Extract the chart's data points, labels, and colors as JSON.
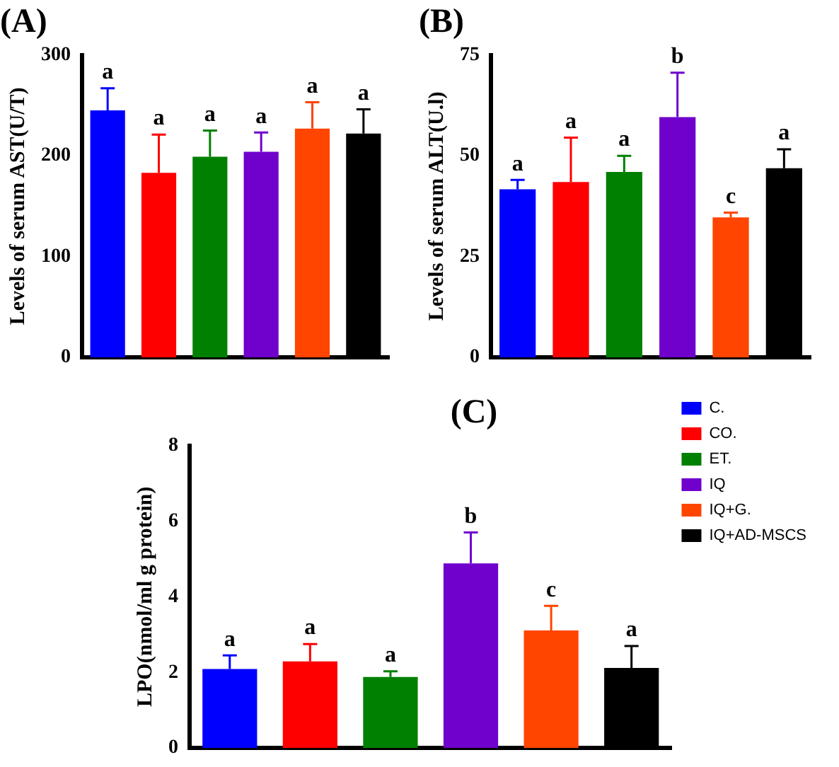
{
  "chart_data": [
    {
      "type": "bar",
      "title": "(A)",
      "ylabel": "Levels of serum AST(U/T)",
      "categories": [
        null,
        null,
        null,
        null,
        null,
        null
      ],
      "ylim": [
        0,
        300
      ],
      "yticks": [
        0,
        100,
        200,
        300
      ],
      "grid": false,
      "tick_labels": "y",
      "legend": false,
      "series": [
        {
          "color": "#0000ff",
          "values": [
            245,
            null,
            null,
            null,
            null,
            null
          ],
          "errors": [
            22,
            null,
            null,
            null,
            null,
            null
          ],
          "value_labels": [
            "a",
            null,
            null,
            null,
            null,
            null
          ]
        },
        {
          "color": "#ff0000",
          "values": [
            null,
            183,
            null,
            null,
            null,
            null
          ],
          "errors": [
            null,
            38,
            null,
            null,
            null,
            null
          ],
          "value_labels": [
            null,
            "a",
            null,
            null,
            null,
            null
          ]
        },
        {
          "color": "#008000",
          "values": [
            null,
            null,
            199,
            null,
            null,
            null
          ],
          "errors": [
            null,
            null,
            26,
            null,
            null,
            null
          ],
          "value_labels": [
            null,
            null,
            "a",
            null,
            null,
            null
          ]
        },
        {
          "color": "#7000cc",
          "values": [
            null,
            null,
            null,
            204,
            null,
            null
          ],
          "errors": [
            null,
            null,
            null,
            19,
            null,
            null
          ],
          "value_labels": [
            null,
            null,
            null,
            "a",
            null,
            null
          ]
        },
        {
          "color": "#ff4500",
          "values": [
            null,
            null,
            null,
            null,
            227,
            null
          ],
          "errors": [
            null,
            null,
            null,
            null,
            26,
            null
          ],
          "value_labels": [
            null,
            null,
            null,
            null,
            "a",
            null
          ]
        },
        {
          "color": "#000000",
          "values": [
            null,
            null,
            null,
            null,
            null,
            222
          ],
          "errors": [
            null,
            null,
            null,
            null,
            null,
            24
          ],
          "value_labels": [
            null,
            null,
            null,
            null,
            null,
            "a"
          ]
        }
      ]
    },
    {
      "type": "bar",
      "title": "(B)",
      "ylabel": "Levels of serum ALT(U.l)",
      "categories": [
        null,
        null,
        null,
        null,
        null,
        null
      ],
      "ylim": [
        0,
        75
      ],
      "yticks": [
        0,
        25,
        50,
        75
      ],
      "grid": false,
      "tick_labels": "y",
      "legend": false,
      "series": [
        {
          "color": "#0000ff",
          "values": [
            41.7,
            null,
            null,
            null,
            null,
            null
          ],
          "errors": [
            2.3,
            null,
            null,
            null,
            null,
            null
          ],
          "value_labels": [
            "a",
            null,
            null,
            null,
            null,
            null
          ]
        },
        {
          "color": "#ff0000",
          "values": [
            null,
            43.5,
            null,
            null,
            null,
            null
          ],
          "errors": [
            null,
            11,
            null,
            null,
            null,
            null
          ],
          "value_labels": [
            null,
            "a",
            null,
            null,
            null,
            null
          ]
        },
        {
          "color": "#008000",
          "values": [
            null,
            null,
            46,
            null,
            null,
            null
          ],
          "errors": [
            null,
            null,
            4,
            null,
            null,
            null
          ],
          "value_labels": [
            null,
            null,
            "a",
            null,
            null,
            null
          ]
        },
        {
          "color": "#7000cc",
          "values": [
            null,
            null,
            null,
            59.6,
            null,
            null
          ],
          "errors": [
            null,
            null,
            null,
            11,
            null,
            null
          ],
          "value_labels": [
            null,
            null,
            null,
            "b",
            null,
            null
          ]
        },
        {
          "color": "#ff4500",
          "values": [
            null,
            null,
            null,
            null,
            34.7,
            null
          ],
          "errors": [
            null,
            null,
            null,
            null,
            1.2,
            null
          ],
          "value_labels": [
            null,
            null,
            null,
            null,
            "c",
            null
          ]
        },
        {
          "color": "#000000",
          "values": [
            null,
            null,
            null,
            null,
            null,
            46.9
          ],
          "errors": [
            null,
            null,
            null,
            null,
            null,
            4.7
          ],
          "value_labels": [
            null,
            null,
            null,
            null,
            null,
            "a"
          ]
        }
      ]
    },
    {
      "type": "bar",
      "title": "(C)",
      "ylabel": "LPO(nmol/ml g protein)",
      "categories": [
        null,
        null,
        null,
        null,
        null,
        null
      ],
      "ylim": [
        0,
        8
      ],
      "yticks": [
        0,
        2,
        4,
        6,
        8
      ],
      "grid": false,
      "tick_labels": "y",
      "legend": "right",
      "series": [
        {
          "name": "C.",
          "color": "#0000ff",
          "values": [
            2.09,
            null,
            null,
            null,
            null,
            null
          ],
          "errors": [
            0.36,
            null,
            null,
            null,
            null,
            null
          ],
          "value_labels": [
            "a",
            null,
            null,
            null,
            null,
            null
          ]
        },
        {
          "name": "CO.",
          "color": "#ff0000",
          "values": [
            null,
            2.29,
            null,
            null,
            null,
            null
          ],
          "errors": [
            null,
            0.46,
            null,
            null,
            null,
            null
          ],
          "value_labels": [
            null,
            "a",
            null,
            null,
            null,
            null
          ]
        },
        {
          "name": "ET.",
          "color": "#008000",
          "values": [
            null,
            null,
            1.88,
            null,
            null,
            null
          ],
          "errors": [
            null,
            null,
            0.15,
            null,
            null,
            null
          ],
          "value_labels": [
            null,
            null,
            "a",
            null,
            null,
            null
          ]
        },
        {
          "name": "IQ",
          "color": "#7000cc",
          "values": [
            null,
            null,
            null,
            4.88,
            null,
            null
          ],
          "errors": [
            null,
            null,
            null,
            0.82,
            null,
            null
          ],
          "value_labels": [
            null,
            null,
            null,
            "b",
            null,
            null
          ]
        },
        {
          "name": "IQ+G.",
          "color": "#ff4500",
          "values": [
            null,
            null,
            null,
            null,
            3.11,
            null
          ],
          "errors": [
            null,
            null,
            null,
            null,
            0.65,
            null
          ],
          "value_labels": [
            null,
            null,
            null,
            null,
            "c",
            null
          ]
        },
        {
          "name": "IQ+AD-MSCS",
          "color": "#000000",
          "values": [
            null,
            null,
            null,
            null,
            null,
            2.12
          ],
          "errors": [
            null,
            null,
            null,
            null,
            null,
            0.58
          ],
          "value_labels": [
            null,
            null,
            null,
            null,
            null,
            "a"
          ]
        }
      ]
    }
  ]
}
